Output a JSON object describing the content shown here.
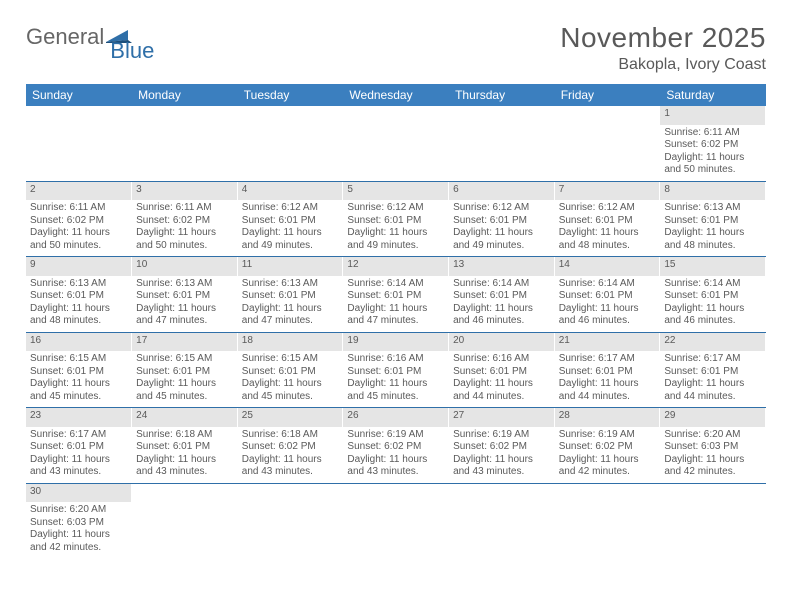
{
  "brand": {
    "part1": "General",
    "part2": "Blue"
  },
  "header": {
    "month_title": "November 2025",
    "location": "Bakopla, Ivory Coast"
  },
  "colors": {
    "header_bg": "#3b7fbf",
    "header_text": "#ffffff",
    "daynum_bg": "#e5e5e5",
    "border": "#2f6fa8",
    "text": "#5a5a5a",
    "brand_blue": "#2f6fa8"
  },
  "day_labels": [
    "Sunday",
    "Monday",
    "Tuesday",
    "Wednesday",
    "Thursday",
    "Friday",
    "Saturday"
  ],
  "weeks": [
    [
      null,
      null,
      null,
      null,
      null,
      null,
      {
        "n": "1",
        "sr": "Sunrise: 6:11 AM",
        "ss": "Sunset: 6:02 PM",
        "d1": "Daylight: 11 hours",
        "d2": "and 50 minutes."
      }
    ],
    [
      {
        "n": "2",
        "sr": "Sunrise: 6:11 AM",
        "ss": "Sunset: 6:02 PM",
        "d1": "Daylight: 11 hours",
        "d2": "and 50 minutes."
      },
      {
        "n": "3",
        "sr": "Sunrise: 6:11 AM",
        "ss": "Sunset: 6:02 PM",
        "d1": "Daylight: 11 hours",
        "d2": "and 50 minutes."
      },
      {
        "n": "4",
        "sr": "Sunrise: 6:12 AM",
        "ss": "Sunset: 6:01 PM",
        "d1": "Daylight: 11 hours",
        "d2": "and 49 minutes."
      },
      {
        "n": "5",
        "sr": "Sunrise: 6:12 AM",
        "ss": "Sunset: 6:01 PM",
        "d1": "Daylight: 11 hours",
        "d2": "and 49 minutes."
      },
      {
        "n": "6",
        "sr": "Sunrise: 6:12 AM",
        "ss": "Sunset: 6:01 PM",
        "d1": "Daylight: 11 hours",
        "d2": "and 49 minutes."
      },
      {
        "n": "7",
        "sr": "Sunrise: 6:12 AM",
        "ss": "Sunset: 6:01 PM",
        "d1": "Daylight: 11 hours",
        "d2": "and 48 minutes."
      },
      {
        "n": "8",
        "sr": "Sunrise: 6:13 AM",
        "ss": "Sunset: 6:01 PM",
        "d1": "Daylight: 11 hours",
        "d2": "and 48 minutes."
      }
    ],
    [
      {
        "n": "9",
        "sr": "Sunrise: 6:13 AM",
        "ss": "Sunset: 6:01 PM",
        "d1": "Daylight: 11 hours",
        "d2": "and 48 minutes."
      },
      {
        "n": "10",
        "sr": "Sunrise: 6:13 AM",
        "ss": "Sunset: 6:01 PM",
        "d1": "Daylight: 11 hours",
        "d2": "and 47 minutes."
      },
      {
        "n": "11",
        "sr": "Sunrise: 6:13 AM",
        "ss": "Sunset: 6:01 PM",
        "d1": "Daylight: 11 hours",
        "d2": "and 47 minutes."
      },
      {
        "n": "12",
        "sr": "Sunrise: 6:14 AM",
        "ss": "Sunset: 6:01 PM",
        "d1": "Daylight: 11 hours",
        "d2": "and 47 minutes."
      },
      {
        "n": "13",
        "sr": "Sunrise: 6:14 AM",
        "ss": "Sunset: 6:01 PM",
        "d1": "Daylight: 11 hours",
        "d2": "and 46 minutes."
      },
      {
        "n": "14",
        "sr": "Sunrise: 6:14 AM",
        "ss": "Sunset: 6:01 PM",
        "d1": "Daylight: 11 hours",
        "d2": "and 46 minutes."
      },
      {
        "n": "15",
        "sr": "Sunrise: 6:14 AM",
        "ss": "Sunset: 6:01 PM",
        "d1": "Daylight: 11 hours",
        "d2": "and 46 minutes."
      }
    ],
    [
      {
        "n": "16",
        "sr": "Sunrise: 6:15 AM",
        "ss": "Sunset: 6:01 PM",
        "d1": "Daylight: 11 hours",
        "d2": "and 45 minutes."
      },
      {
        "n": "17",
        "sr": "Sunrise: 6:15 AM",
        "ss": "Sunset: 6:01 PM",
        "d1": "Daylight: 11 hours",
        "d2": "and 45 minutes."
      },
      {
        "n": "18",
        "sr": "Sunrise: 6:15 AM",
        "ss": "Sunset: 6:01 PM",
        "d1": "Daylight: 11 hours",
        "d2": "and 45 minutes."
      },
      {
        "n": "19",
        "sr": "Sunrise: 6:16 AM",
        "ss": "Sunset: 6:01 PM",
        "d1": "Daylight: 11 hours",
        "d2": "and 45 minutes."
      },
      {
        "n": "20",
        "sr": "Sunrise: 6:16 AM",
        "ss": "Sunset: 6:01 PM",
        "d1": "Daylight: 11 hours",
        "d2": "and 44 minutes."
      },
      {
        "n": "21",
        "sr": "Sunrise: 6:17 AM",
        "ss": "Sunset: 6:01 PM",
        "d1": "Daylight: 11 hours",
        "d2": "and 44 minutes."
      },
      {
        "n": "22",
        "sr": "Sunrise: 6:17 AM",
        "ss": "Sunset: 6:01 PM",
        "d1": "Daylight: 11 hours",
        "d2": "and 44 minutes."
      }
    ],
    [
      {
        "n": "23",
        "sr": "Sunrise: 6:17 AM",
        "ss": "Sunset: 6:01 PM",
        "d1": "Daylight: 11 hours",
        "d2": "and 43 minutes."
      },
      {
        "n": "24",
        "sr": "Sunrise: 6:18 AM",
        "ss": "Sunset: 6:01 PM",
        "d1": "Daylight: 11 hours",
        "d2": "and 43 minutes."
      },
      {
        "n": "25",
        "sr": "Sunrise: 6:18 AM",
        "ss": "Sunset: 6:02 PM",
        "d1": "Daylight: 11 hours",
        "d2": "and 43 minutes."
      },
      {
        "n": "26",
        "sr": "Sunrise: 6:19 AM",
        "ss": "Sunset: 6:02 PM",
        "d1": "Daylight: 11 hours",
        "d2": "and 43 minutes."
      },
      {
        "n": "27",
        "sr": "Sunrise: 6:19 AM",
        "ss": "Sunset: 6:02 PM",
        "d1": "Daylight: 11 hours",
        "d2": "and 43 minutes."
      },
      {
        "n": "28",
        "sr": "Sunrise: 6:19 AM",
        "ss": "Sunset: 6:02 PM",
        "d1": "Daylight: 11 hours",
        "d2": "and 42 minutes."
      },
      {
        "n": "29",
        "sr": "Sunrise: 6:20 AM",
        "ss": "Sunset: 6:03 PM",
        "d1": "Daylight: 11 hours",
        "d2": "and 42 minutes."
      }
    ],
    [
      {
        "n": "30",
        "sr": "Sunrise: 6:20 AM",
        "ss": "Sunset: 6:03 PM",
        "d1": "Daylight: 11 hours",
        "d2": "and 42 minutes."
      },
      null,
      null,
      null,
      null,
      null,
      null
    ]
  ]
}
